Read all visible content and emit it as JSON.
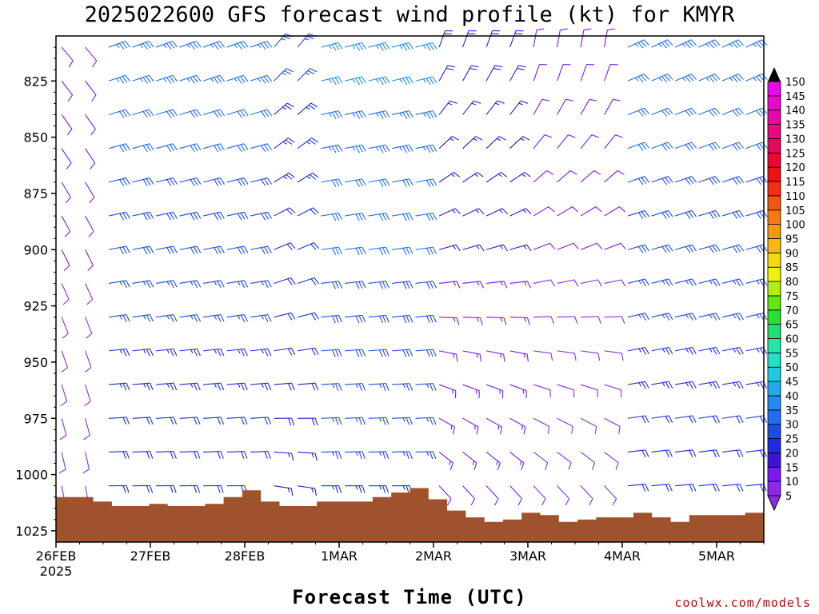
{
  "chart_data": {
    "type": "wind-barb time-height profile",
    "title": "2025022600 GFS forecast wind profile (kt) for KMYR",
    "xlabel": "Forecast Time (UTC)",
    "ylabel": "",
    "credit": "coolwx.com/models",
    "x_ticks": [
      {
        "label": "26FEB",
        "sublabel": "2025",
        "day": 0
      },
      {
        "label": "27FEB",
        "day": 1
      },
      {
        "label": "28FEB",
        "day": 2
      },
      {
        "label": "1MAR",
        "day": 3
      },
      {
        "label": "2MAR",
        "day": 4
      },
      {
        "label": "3MAR",
        "day": 5
      },
      {
        "label": "4MAR",
        "day": 6
      },
      {
        "label": "5MAR",
        "day": 7
      }
    ],
    "xlim_days": [
      0,
      7.5
    ],
    "y_ticks_hpa": [
      825,
      850,
      875,
      900,
      925,
      950,
      975,
      1000,
      1025
    ],
    "ylim_hpa": [
      805,
      1030
    ],
    "levels_hpa": [
      810,
      825,
      840,
      855,
      870,
      885,
      900,
      915,
      930,
      945,
      960,
      975,
      990,
      1005
    ],
    "time_step_hours": 6,
    "colorbar": {
      "levels": [
        5,
        10,
        15,
        20,
        25,
        30,
        35,
        40,
        45,
        50,
        55,
        60,
        65,
        70,
        75,
        80,
        85,
        90,
        95,
        100,
        105,
        110,
        115,
        120,
        125,
        130,
        135,
        140,
        145,
        150
      ],
      "colors": [
        "#8a2be2",
        "#7a18f0",
        "#3c14d8",
        "#1c2ce0",
        "#1c4ce8",
        "#1e6ef0",
        "#1e8cf0",
        "#22a8ec",
        "#20c8e4",
        "#22e0c8",
        "#20e8a4",
        "#22e070",
        "#28e030",
        "#60e810",
        "#b0f010",
        "#f0f010",
        "#f8d810",
        "#f8b810",
        "#f89810",
        "#f87810",
        "#f05810",
        "#f03010",
        "#f01010",
        "#e80830",
        "#e80858",
        "#e80880",
        "#e808a8",
        "#e808c8",
        "#e808e8"
      ]
    },
    "surface_pressure_hpa": [
      1010,
      1010,
      1012,
      1014,
      1014,
      1013,
      1014,
      1014,
      1013,
      1010,
      1007,
      1012,
      1014,
      1014,
      1012,
      1012,
      1012,
      1010,
      1008,
      1006,
      1011,
      1016,
      1019,
      1021,
      1020,
      1017,
      1018,
      1021,
      1020,
      1019,
      1019,
      1017,
      1019,
      1021,
      1018,
      1018,
      1018,
      1017
    ]
  }
}
